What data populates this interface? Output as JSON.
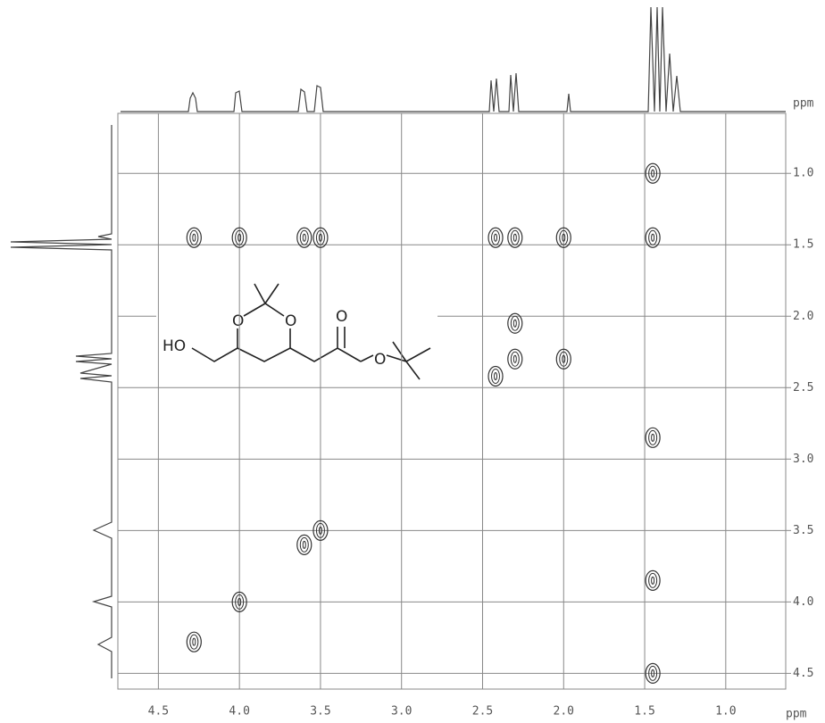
{
  "chart_data": {
    "type": "scatter",
    "x": [
      4.28,
      4.0,
      3.6,
      3.5,
      2.42,
      2.3,
      1.45,
      4.28,
      4.0,
      3.6,
      3.5,
      2.42,
      2.3,
      2.0,
      1.45,
      2.3,
      2.0,
      1.45,
      1.45,
      1.45
    ],
    "y": [
      4.28,
      4.0,
      3.6,
      3.5,
      2.42,
      2.3,
      1.45,
      1.45,
      1.45,
      1.45,
      1.45,
      1.45,
      1.45,
      1.45,
      1.0,
      2.05,
      2.3,
      2.85,
      3.85,
      4.5
    ],
    "color": "#333333",
    "xlabel": "ppm",
    "ylabel": "ppm",
    "xlim": [
      4.75,
      0.63
    ],
    "ylim": [
      0.58,
      4.61
    ],
    "xticks": [
      {
        "value": 4.5,
        "label": "4.5"
      },
      {
        "value": 4.0,
        "label": "4.0"
      },
      {
        "value": 3.5,
        "label": "3.5"
      },
      {
        "value": 3.0,
        "label": "3.0"
      },
      {
        "value": 2.5,
        "label": "2.5"
      },
      {
        "value": 2.0,
        "label": "2.0"
      },
      {
        "value": 1.5,
        "label": "1.5"
      },
      {
        "value": 1.0,
        "label": "1.0"
      }
    ],
    "yticks": [
      {
        "value": 1.0,
        "label": "1.0"
      },
      {
        "value": 1.5,
        "label": "1.5"
      },
      {
        "value": 2.0,
        "label": "2.0"
      },
      {
        "value": 2.5,
        "label": "2.5"
      },
      {
        "value": 3.0,
        "label": "3.0"
      },
      {
        "value": 3.5,
        "label": "3.5"
      },
      {
        "value": 4.0,
        "label": "4.0"
      },
      {
        "value": 4.5,
        "label": "4.5"
      }
    ],
    "grid": true
  },
  "structure": {
    "labels": [
      "HO",
      "O",
      "O",
      "O",
      "O"
    ]
  }
}
